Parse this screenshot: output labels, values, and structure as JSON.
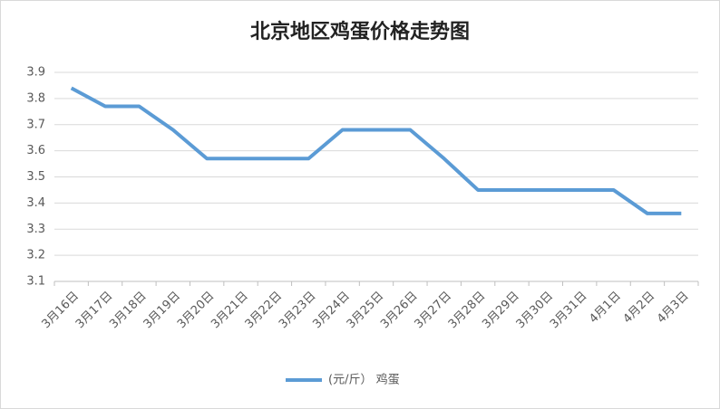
{
  "chart_data": {
    "type": "line",
    "title": "北京地区鸡蛋价格走势图",
    "categories": [
      "3月16日",
      "3月17日",
      "3月18日",
      "3月19日",
      "3月20日",
      "3月21日",
      "3月22日",
      "3月23日",
      "3月24日",
      "3月25日",
      "3月26日",
      "3月27日",
      "3月28日",
      "3月29日",
      "3月30日",
      "3月31日",
      "4月1日",
      "4月2日",
      "4月3日"
    ],
    "series": [
      {
        "name": "(元/斤） 鸡蛋",
        "color": "#5b9bd5",
        "values": [
          3.84,
          3.77,
          3.77,
          3.68,
          3.57,
          3.57,
          3.57,
          3.57,
          3.68,
          3.68,
          3.68,
          3.57,
          3.45,
          3.45,
          3.45,
          3.45,
          3.45,
          3.36,
          3.36
        ]
      }
    ],
    "ylim": [
      3.1,
      3.9
    ],
    "yticks": [
      3.1,
      3.2,
      3.3,
      3.4,
      3.5,
      3.6,
      3.7,
      3.8,
      3.9
    ],
    "grid": true,
    "legend": "bottom"
  }
}
